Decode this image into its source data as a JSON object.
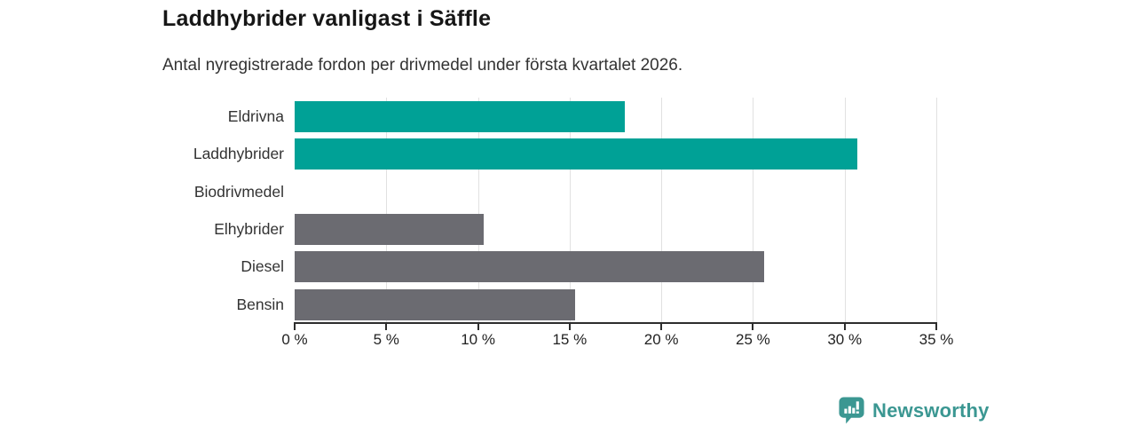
{
  "header": {
    "title": "Laddhybrider vanligast i Säffle",
    "subtitle": "Antal nyregistrerade fordon per drivmedel under första kvartalet 2026."
  },
  "chart_data": {
    "type": "bar",
    "orientation": "horizontal",
    "title": "Laddhybrider vanligast i Säffle",
    "subtitle": "Antal nyregistrerade fordon per drivmedel under första kvartalet 2026.",
    "categories": [
      "Eldrivna",
      "Laddhybrider",
      "Biodrivmedel",
      "Elhybrider",
      "Diesel",
      "Bensin"
    ],
    "values": [
      18,
      30.7,
      0,
      10.3,
      25.6,
      15.3
    ],
    "bar_colors": [
      "#00a196",
      "#00a196",
      "#6b6b71",
      "#6b6b71",
      "#6b6b71",
      "#6b6b71"
    ],
    "xlabel": "",
    "ylabel": "",
    "xlim": [
      0,
      35
    ],
    "x_ticks": [
      0,
      5,
      10,
      15,
      20,
      25,
      30,
      35
    ],
    "x_tick_labels": [
      "0 %",
      "5 %",
      "10 %",
      "15 %",
      "20 %",
      "25 %",
      "30 %",
      "35 %"
    ],
    "grid": "vertical",
    "legend": "none",
    "highlight_color": "#00a196",
    "default_color": "#6b6b71"
  },
  "branding": {
    "name": "Newsworthy",
    "logo_icon": "bar-chart-speech-bubble-icon",
    "color": "#3b9792"
  },
  "colors": {
    "background": "#ffffff",
    "gridline": "#e1e1e1",
    "axis": "#2d2d2d",
    "title_text": "#161616",
    "body_text": "#333333"
  }
}
